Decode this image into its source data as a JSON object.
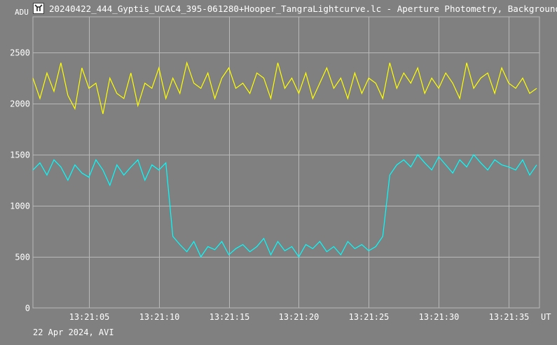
{
  "window": {
    "title": "20240422_444_Gyptis_UCAC4_395-061280+Hooper_TangraLightcurve.lc - Aperture Photometry, Background",
    "icon": "tangra-app-icon"
  },
  "footer": {
    "date_label": "22 Apr 2024, AVI"
  },
  "chart_data": {
    "type": "line",
    "title": "",
    "ylabel": "ADU",
    "xlabel": "UT",
    "ylim": [
      0,
      2850
    ],
    "xlim": [
      0,
      36.2
    ],
    "grid": true,
    "y_ticks": [
      0,
      500,
      1000,
      1500,
      2000,
      2500
    ],
    "x_ticks": [
      "13:21:05",
      "13:21:10",
      "13:21:15",
      "13:21:20",
      "13:21:25",
      "13:21:30",
      "13:21:35"
    ],
    "x_tick_values": [
      4,
      9,
      14,
      19,
      24,
      29,
      34
    ],
    "x_unit_label": "UT",
    "colors": {
      "target": "#00ffff",
      "comparison": "#ffff00",
      "grid": "#b8b8b8",
      "background": "#808080"
    },
    "series": [
      {
        "color": "#ffff00",
        "x": [
          0,
          0.5,
          1,
          1.5,
          2,
          2.5,
          3,
          3.5,
          4,
          4.5,
          5,
          5.5,
          6,
          6.5,
          7,
          7.5,
          8,
          8.5,
          9,
          9.5,
          10,
          10.5,
          11,
          11.5,
          12,
          12.5,
          13,
          13.5,
          14,
          14.5,
          15,
          15.5,
          16,
          16.5,
          17,
          17.5,
          18,
          18.5,
          19,
          19.5,
          20,
          20.5,
          21,
          21.5,
          22,
          22.5,
          23,
          23.5,
          24,
          24.5,
          25,
          25.5,
          26,
          26.5,
          27,
          27.5,
          28,
          28.5,
          29,
          29.5,
          30,
          30.5,
          31,
          31.5,
          32,
          32.5,
          33,
          33.5,
          34,
          34.5,
          35,
          35.5,
          36
        ],
        "values": [
          2250,
          2050,
          2300,
          2120,
          2400,
          2080,
          1950,
          2350,
          2150,
          2200,
          1900,
          2250,
          2100,
          2050,
          2300,
          1980,
          2200,
          2150,
          2350,
          2050,
          2250,
          2100,
          2400,
          2200,
          2150,
          2300,
          2050,
          2250,
          2350,
          2150,
          2200,
          2100,
          2300,
          2250,
          2050,
          2400,
          2150,
          2250,
          2100,
          2300,
          2050,
          2200,
          2350,
          2150,
          2250,
          2050,
          2300,
          2100,
          2250,
          2200,
          2050,
          2400,
          2150,
          2300,
          2200,
          2350,
          2100,
          2250,
          2150,
          2300,
          2200,
          2050,
          2400,
          2150,
          2250,
          2300,
          2100,
          2350,
          2200,
          2150,
          2250,
          2100,
          2150
        ]
      },
      {
        "color": "#00ffff",
        "x": [
          0,
          0.5,
          1,
          1.5,
          2,
          2.5,
          3,
          3.5,
          4,
          4.5,
          5,
          5.5,
          6,
          6.5,
          7,
          7.5,
          8,
          8.5,
          9,
          9.5,
          10,
          10.5,
          11,
          11.5,
          12,
          12.5,
          13,
          13.5,
          14,
          14.5,
          15,
          15.5,
          16,
          16.5,
          17,
          17.5,
          18,
          18.5,
          19,
          19.5,
          20,
          20.5,
          21,
          21.5,
          22,
          22.5,
          23,
          23.5,
          24,
          24.5,
          25,
          25.5,
          26,
          26.5,
          27,
          27.5,
          28,
          28.5,
          29,
          29.5,
          30,
          30.5,
          31,
          31.5,
          32,
          32.5,
          33,
          33.5,
          34,
          34.5,
          35,
          35.5,
          36
        ],
        "values": [
          1350,
          1420,
          1300,
          1450,
          1380,
          1250,
          1400,
          1320,
          1280,
          1450,
          1350,
          1200,
          1400,
          1300,
          1380,
          1450,
          1250,
          1400,
          1350,
          1420,
          700,
          620,
          550,
          650,
          500,
          600,
          570,
          650,
          520,
          580,
          620,
          550,
          600,
          680,
          520,
          650,
          560,
          600,
          500,
          620,
          580,
          650,
          550,
          600,
          520,
          650,
          580,
          620,
          560,
          600,
          700,
          1300,
          1400,
          1450,
          1380,
          1500,
          1420,
          1350,
          1480,
          1400,
          1320,
          1450,
          1380,
          1500,
          1420,
          1350,
          1450,
          1400,
          1380,
          1350,
          1450,
          1300,
          1400
        ]
      }
    ]
  }
}
